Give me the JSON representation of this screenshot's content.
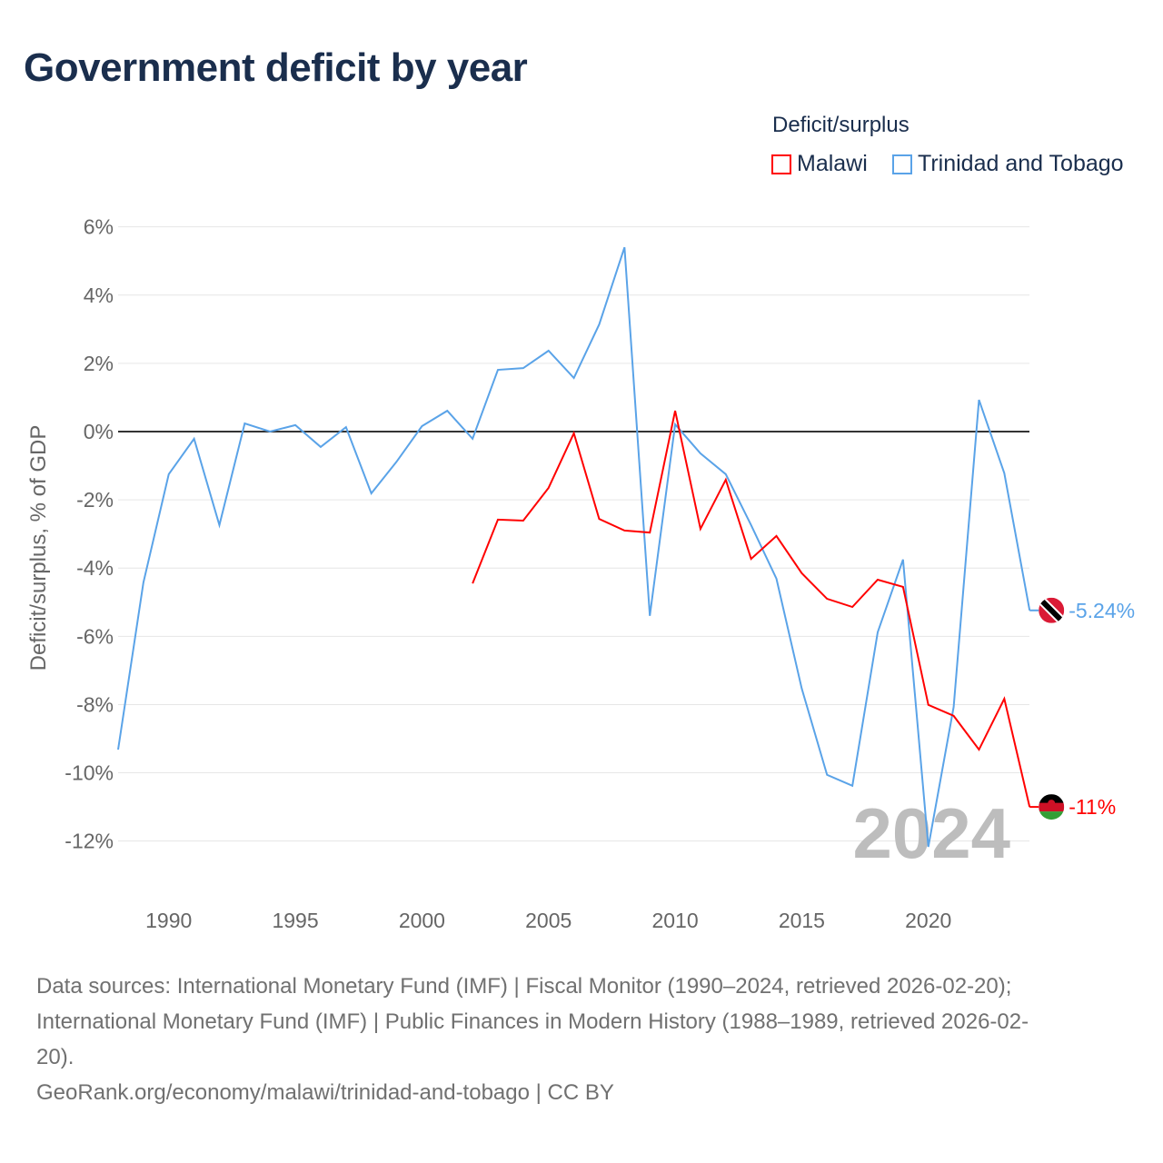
{
  "title": "Government deficit by year",
  "chart_data": {
    "type": "line",
    "title": "Government deficit by year",
    "ylabel": "Deficit/surplus, % of GDP",
    "xlabel": "",
    "legend_title": "Deficit/surplus",
    "legend_placement": "top-right",
    "xlim": [
      1988,
      2024
    ],
    "ylim": [
      -13,
      6.5
    ],
    "x_ticks": [
      1990,
      1995,
      2000,
      2005,
      2010,
      2015,
      2020
    ],
    "x_tick_labels": [
      "1990",
      "1995",
      "2000",
      "2005",
      "2010",
      "2015",
      "2020"
    ],
    "y_ticks": [
      6,
      4,
      2,
      0,
      -2,
      -4,
      -6,
      -8,
      -10,
      -12
    ],
    "y_tick_labels": [
      "6%",
      "4%",
      "2%",
      "0%",
      "-2%",
      "-4%",
      "-6%",
      "-8%",
      "-10%",
      "-12%"
    ],
    "year_watermark": "2024",
    "series": [
      {
        "name": "Malawi",
        "color": "#ff0000",
        "end_label": "-11%",
        "x": [
          2002,
          2003,
          2004,
          2005,
          2006,
          2007,
          2008,
          2009,
          2010,
          2011,
          2012,
          2013,
          2014,
          2015,
          2016,
          2017,
          2018,
          2019,
          2020,
          2021,
          2022,
          2023,
          2024
        ],
        "values": [
          -4.45,
          -2.58,
          -2.61,
          -1.65,
          -0.05,
          -2.56,
          -2.9,
          -2.96,
          0.61,
          -2.85,
          -1.41,
          -3.73,
          -3.06,
          -4.15,
          -4.9,
          -5.14,
          -4.34,
          -4.55,
          -8.01,
          -8.33,
          -9.32,
          -7.83,
          -11.0
        ]
      },
      {
        "name": "Trinidad and Tobago",
        "color": "#5aa3e8",
        "end_label": "-5.24%",
        "x": [
          1988,
          1989,
          1990,
          1991,
          1992,
          1993,
          1994,
          1995,
          1996,
          1997,
          1998,
          1999,
          2000,
          2001,
          2002,
          2003,
          2004,
          2005,
          2006,
          2007,
          2008,
          2009,
          2010,
          2011,
          2012,
          2013,
          2014,
          2015,
          2016,
          2017,
          2018,
          2019,
          2020,
          2021,
          2022,
          2023,
          2024
        ],
        "values": [
          -9.32,
          -4.42,
          -1.25,
          -0.21,
          -2.74,
          0.24,
          0.0,
          0.19,
          -0.45,
          0.13,
          -1.81,
          -0.88,
          0.16,
          0.61,
          -0.21,
          1.81,
          1.86,
          2.37,
          1.57,
          3.14,
          5.4,
          -5.4,
          0.21,
          -0.64,
          -1.25,
          -2.74,
          -4.31,
          -7.53,
          -10.06,
          -10.38,
          -5.88,
          -3.75,
          -12.17,
          -8.07,
          0.93,
          -1.22,
          -5.24
        ]
      }
    ]
  },
  "sources": {
    "line1": "Data sources: International Monetary Fund (IMF) | Fiscal Monitor (1990–2024, retrieved 2026-02-20);",
    "line2": "International Monetary Fund (IMF) | Public Finances in Modern History (1988–1989, retrieved 2026-02-",
    "line3": "20).",
    "line4": "GeoRank.org/economy/malawi/trinidad-and-tobago | CC BY"
  }
}
